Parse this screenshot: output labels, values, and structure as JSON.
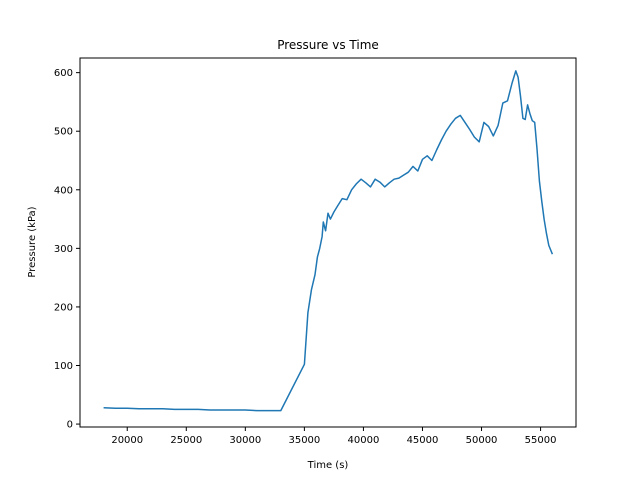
{
  "chart_data": {
    "type": "line",
    "title": "Pressure vs Time",
    "xlabel": "Time (s)",
    "ylabel": "Pressure (kPa)",
    "xlim": [
      16000,
      58000
    ],
    "ylim": [
      -5,
      625
    ],
    "xticks": [
      20000,
      25000,
      30000,
      35000,
      40000,
      45000,
      50000,
      55000
    ],
    "yticks": [
      0,
      100,
      200,
      300,
      400,
      500,
      600
    ],
    "grid": false,
    "legend": "none",
    "series": [
      {
        "color": "#1f77b4",
        "x": [
          18000,
          19000,
          20000,
          21000,
          22000,
          23000,
          24000,
          25000,
          26000,
          27000,
          28000,
          29000,
          30000,
          31000,
          32000,
          33000,
          35000,
          35300,
          35600,
          35900,
          36100,
          36300,
          36500,
          36600,
          36800,
          37000,
          37200,
          37500,
          37800,
          38200,
          38600,
          39000,
          39400,
          39800,
          40200,
          40600,
          41000,
          41400,
          41800,
          42200,
          42600,
          43000,
          43400,
          43800,
          44200,
          44600,
          45000,
          45400,
          45800,
          46200,
          46600,
          47000,
          47400,
          47800,
          48200,
          48600,
          49000,
          49400,
          49800,
          50200,
          50600,
          51000,
          51400,
          51800,
          52200,
          52600,
          52900,
          53100,
          53300,
          53500,
          53700,
          53900,
          54100,
          54300,
          54500,
          54700,
          54900,
          55100,
          55300,
          55500,
          55700,
          56000
        ],
        "y": [
          28,
          27,
          27,
          26,
          26,
          26,
          25,
          25,
          25,
          24,
          24,
          24,
          24,
          23,
          23,
          23,
          102,
          190,
          230,
          255,
          285,
          300,
          320,
          345,
          330,
          360,
          350,
          362,
          372,
          385,
          383,
          400,
          410,
          418,
          412,
          405,
          418,
          413,
          405,
          412,
          418,
          420,
          425,
          430,
          440,
          432,
          452,
          458,
          450,
          468,
          485,
          500,
          512,
          522,
          527,
          515,
          503,
          490,
          482,
          515,
          508,
          492,
          510,
          548,
          552,
          583,
          603,
          592,
          560,
          522,
          520,
          545,
          530,
          518,
          515,
          470,
          415,
          380,
          350,
          325,
          305,
          290
        ]
      }
    ]
  }
}
